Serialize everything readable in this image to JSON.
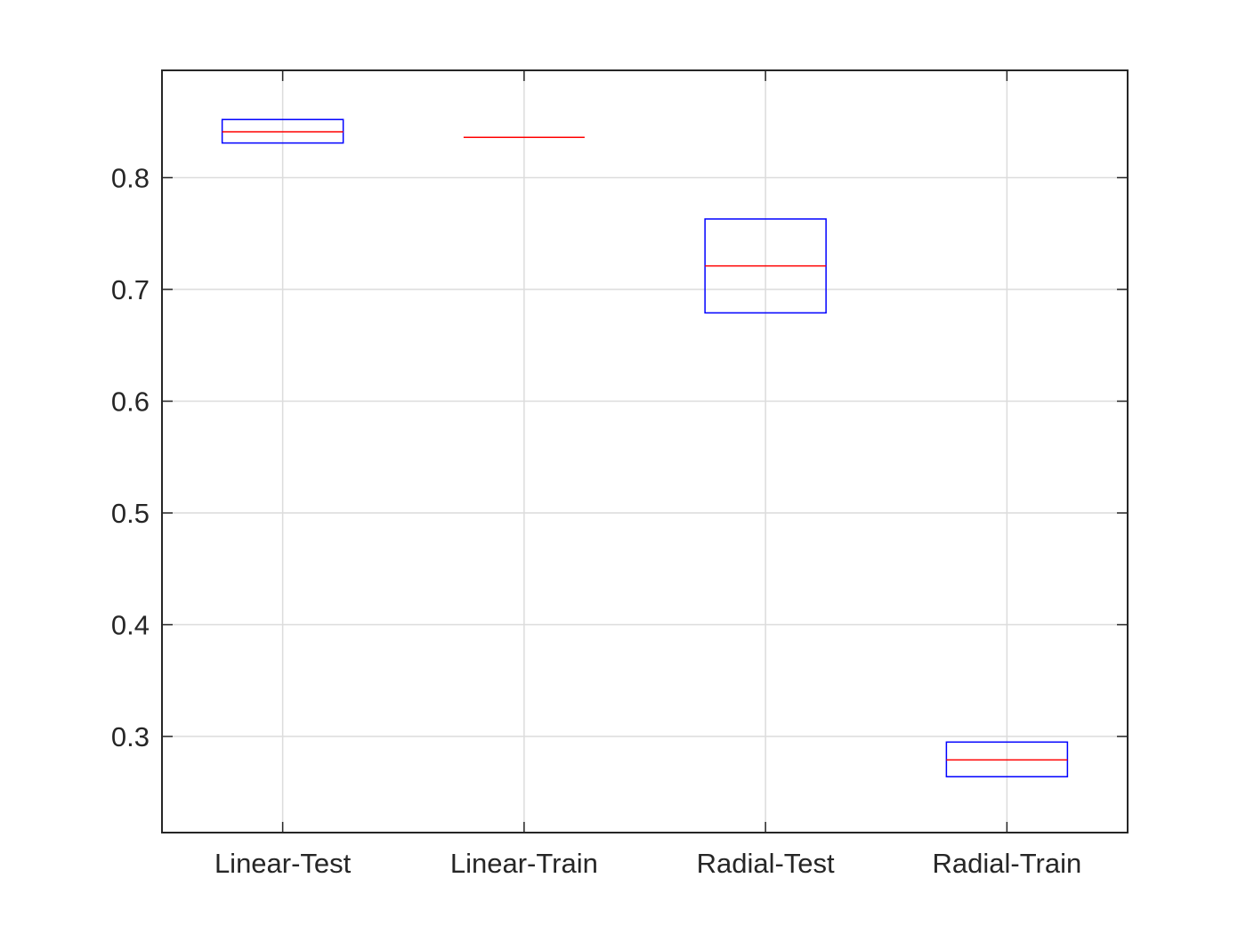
{
  "chart_data": {
    "type": "boxplot",
    "title": "",
    "xlabel": "",
    "ylabel": "",
    "categories": [
      "Linear-Test",
      "Linear-Train",
      "Radial-Test",
      "Radial-Train"
    ],
    "boxes": [
      {
        "q1": 0.831,
        "median": 0.841,
        "q3": 0.852
      },
      {
        "q1": 0.836,
        "median": 0.836,
        "q3": 0.836
      },
      {
        "q1": 0.679,
        "median": 0.721,
        "q3": 0.763
      },
      {
        "q1": 0.264,
        "median": 0.279,
        "q3": 0.295
      }
    ],
    "ylim": [
      0.214,
      0.896
    ],
    "yticks": [
      0.3,
      0.4,
      0.5,
      0.6,
      0.7,
      0.8
    ],
    "ytick_labels": [
      "0.3",
      "0.4",
      "0.5",
      "0.6",
      "0.7",
      "0.8"
    ],
    "grid": true,
    "colors": {
      "box": "#0000ff",
      "median": "#ff0000",
      "axes": "#262626",
      "grid": "#dcdcdc"
    }
  }
}
